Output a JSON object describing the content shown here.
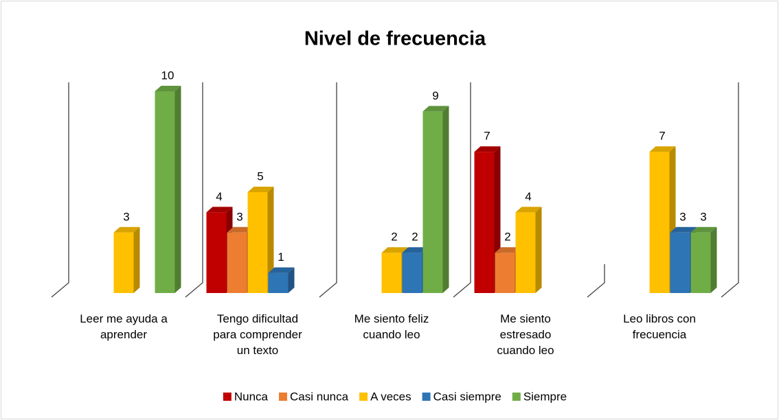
{
  "chart_data": {
    "type": "bar3d",
    "title": "Nivel de frecuencia",
    "categories": [
      "Leer me ayuda a\naprender",
      "Tengo dificultad\npara comprender\nun texto",
      "Me siento feliz\ncuando leo",
      "Me siento\nestresado\ncuando leo",
      "Leo libros con\nfrecuencia"
    ],
    "series": [
      {
        "name": "Nunca",
        "color": "#c00000",
        "values": [
          null,
          4,
          null,
          7,
          null
        ]
      },
      {
        "name": "Casi nunca",
        "color": "#ed7d31",
        "values": [
          null,
          3,
          null,
          2,
          null
        ]
      },
      {
        "name": "A veces",
        "color": "#ffc000",
        "values": [
          3,
          5,
          2,
          4,
          7
        ]
      },
      {
        "name": "Casi siempre",
        "color": "#2e75b6",
        "values": [
          null,
          1,
          2,
          null,
          3
        ]
      },
      {
        "name": "Siempre",
        "color": "#70ad47",
        "values": [
          10,
          null,
          9,
          null,
          3
        ]
      }
    ],
    "ylim": [
      0,
      10
    ],
    "legend": "bottom"
  }
}
